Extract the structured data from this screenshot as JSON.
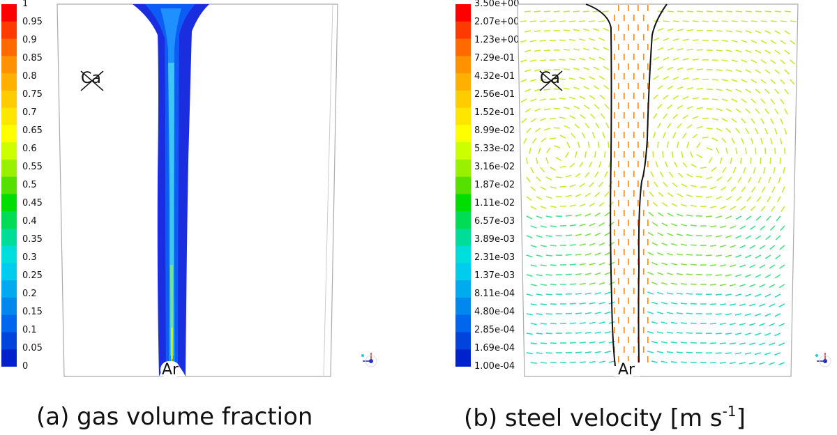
{
  "panel_a": {
    "caption": "(a) gas volume fraction",
    "legend_ticks": [
      "1",
      "0.95",
      "0.9",
      "0.85",
      "0.8",
      "0.75",
      "0.7",
      "0.65",
      "0.6",
      "0.55",
      "0.5",
      "0.45",
      "0.4",
      "0.35",
      "0.3",
      "0.25",
      "0.2",
      "0.15",
      "0.1",
      "0.05",
      "0"
    ],
    "ca_label": "Ca",
    "ar_label": "Ar"
  },
  "panel_b": {
    "caption_prefix": "(b) steel velocity [m s",
    "caption_exp": "-1",
    "caption_suffix": "]",
    "legend_ticks": [
      "3.50e+00",
      "2.07e+00",
      "1.23e+00",
      "7.29e-01",
      "4.32e-01",
      "2.56e-01",
      "1.52e-01",
      "8.99e-02",
      "5.33e-02",
      "3.16e-02",
      "1.87e-02",
      "1.11e-02",
      "6.57e-03",
      "3.89e-03",
      "2.31e-03",
      "1.37e-03",
      "8.11e-04",
      "4.80e-04",
      "2.85e-04",
      "1.69e-04",
      "1.00e-04"
    ],
    "ca_label": "Ca",
    "ar_label": "Ar"
  },
  "colormap": [
    "#ff0000",
    "#ff3a00",
    "#ff6a00",
    "#ff9200",
    "#ffb000",
    "#ffcc00",
    "#ffe600",
    "#ffff00",
    "#ccff00",
    "#99f000",
    "#55e000",
    "#00dd00",
    "#00dd55",
    "#00dd99",
    "#00dddd",
    "#00ccee",
    "#00aaee",
    "#0088ee",
    "#0066ee",
    "#0044dd",
    "#0022cc"
  ]
}
